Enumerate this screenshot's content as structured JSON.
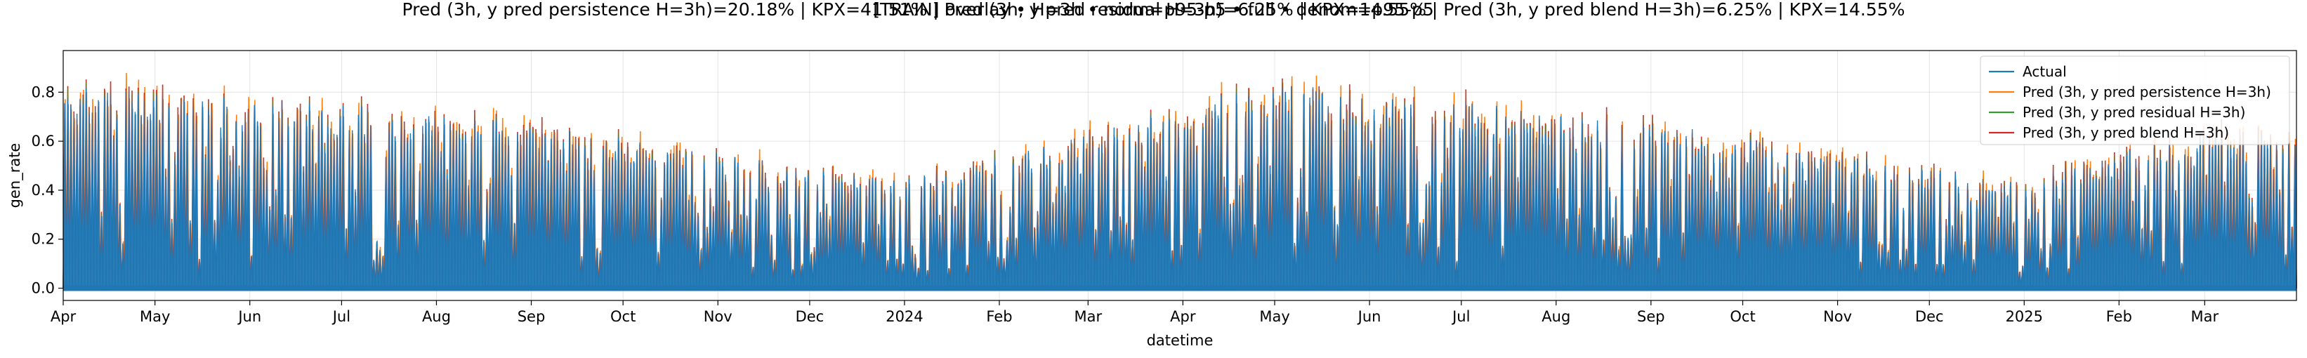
{
  "chart_data": {
    "type": "line",
    "title": "[TRAIN] overlay • H=3h • norm=p95-p5 • full • denom=p95-p5",
    "subtitle": "Pred (3h, y pred persistence H=3h)=20.18% | KPX=41.51% | Pred (3h, y pred residual H=3h)=6.25% | KPX=14.55% | Pred (3h, y pred blend H=3h)=6.25% | KPX=14.55%",
    "xlabel": "datetime",
    "ylabel": "gen_rate",
    "x_range": [
      "2023-04-01",
      "2025-03-31"
    ],
    "ylim": [
      -0.05,
      0.97
    ],
    "yticks": [
      0.0,
      0.2,
      0.4,
      0.6,
      0.8
    ],
    "ytick_labels": [
      "0.0",
      "0.2",
      "0.4",
      "0.6",
      "0.8"
    ],
    "xticks": [
      {
        "date": "2023-04-01",
        "label": "Apr"
      },
      {
        "date": "2023-05-01",
        "label": "May"
      },
      {
        "date": "2023-06-01",
        "label": "Jun"
      },
      {
        "date": "2023-07-01",
        "label": "Jul"
      },
      {
        "date": "2023-08-01",
        "label": "Aug"
      },
      {
        "date": "2023-09-01",
        "label": "Sep"
      },
      {
        "date": "2023-10-01",
        "label": "Oct"
      },
      {
        "date": "2023-11-01",
        "label": "Nov"
      },
      {
        "date": "2023-12-01",
        "label": "Dec"
      },
      {
        "date": "2024-01-01",
        "label": "2024"
      },
      {
        "date": "2024-02-01",
        "label": "Feb"
      },
      {
        "date": "2024-03-01",
        "label": "Mar"
      },
      {
        "date": "2024-04-01",
        "label": "Apr"
      },
      {
        "date": "2024-05-01",
        "label": "May"
      },
      {
        "date": "2024-06-01",
        "label": "Jun"
      },
      {
        "date": "2024-07-01",
        "label": "Jul"
      },
      {
        "date": "2024-08-01",
        "label": "Aug"
      },
      {
        "date": "2024-09-01",
        "label": "Sep"
      },
      {
        "date": "2024-10-01",
        "label": "Oct"
      },
      {
        "date": "2024-11-01",
        "label": "Nov"
      },
      {
        "date": "2024-12-01",
        "label": "Dec"
      },
      {
        "date": "2025-01-01",
        "label": "2025"
      },
      {
        "date": "2025-02-01",
        "label": "Feb"
      },
      {
        "date": "2025-03-01",
        "label": "Mar"
      }
    ],
    "grid": true,
    "legend_position": "top-right",
    "series": [
      {
        "name": "Actual",
        "color": "#1f77b4"
      },
      {
        "name": "Pred (3h, y pred persistence H=3h)",
        "color": "#ff7f0e"
      },
      {
        "name": "Pred (3h, y pred residual H=3h)",
        "color": "#2ca02c"
      },
      {
        "name": "Pred (3h, y pred blend H=3h)",
        "color": "#d62728"
      }
    ],
    "daily_peak_envelope": {
      "description_units": "approximate daily peak gen_rate of Actual by month",
      "months": [
        "2023-04",
        "2023-05",
        "2023-06",
        "2023-07",
        "2023-08",
        "2023-09",
        "2023-10",
        "2023-11",
        "2023-12",
        "2024-01",
        "2024-02",
        "2024-03",
        "2024-04",
        "2024-05",
        "2024-06",
        "2024-07",
        "2024-08",
        "2024-09",
        "2024-10",
        "2024-11",
        "2024-12",
        "2025-01",
        "2025-02",
        "2025-03"
      ],
      "peak": [
        0.78,
        0.76,
        0.73,
        0.71,
        0.67,
        0.64,
        0.58,
        0.53,
        0.46,
        0.42,
        0.5,
        0.6,
        0.7,
        0.8,
        0.74,
        0.72,
        0.68,
        0.64,
        0.58,
        0.52,
        0.46,
        0.42,
        0.52,
        0.62
      ]
    }
  }
}
